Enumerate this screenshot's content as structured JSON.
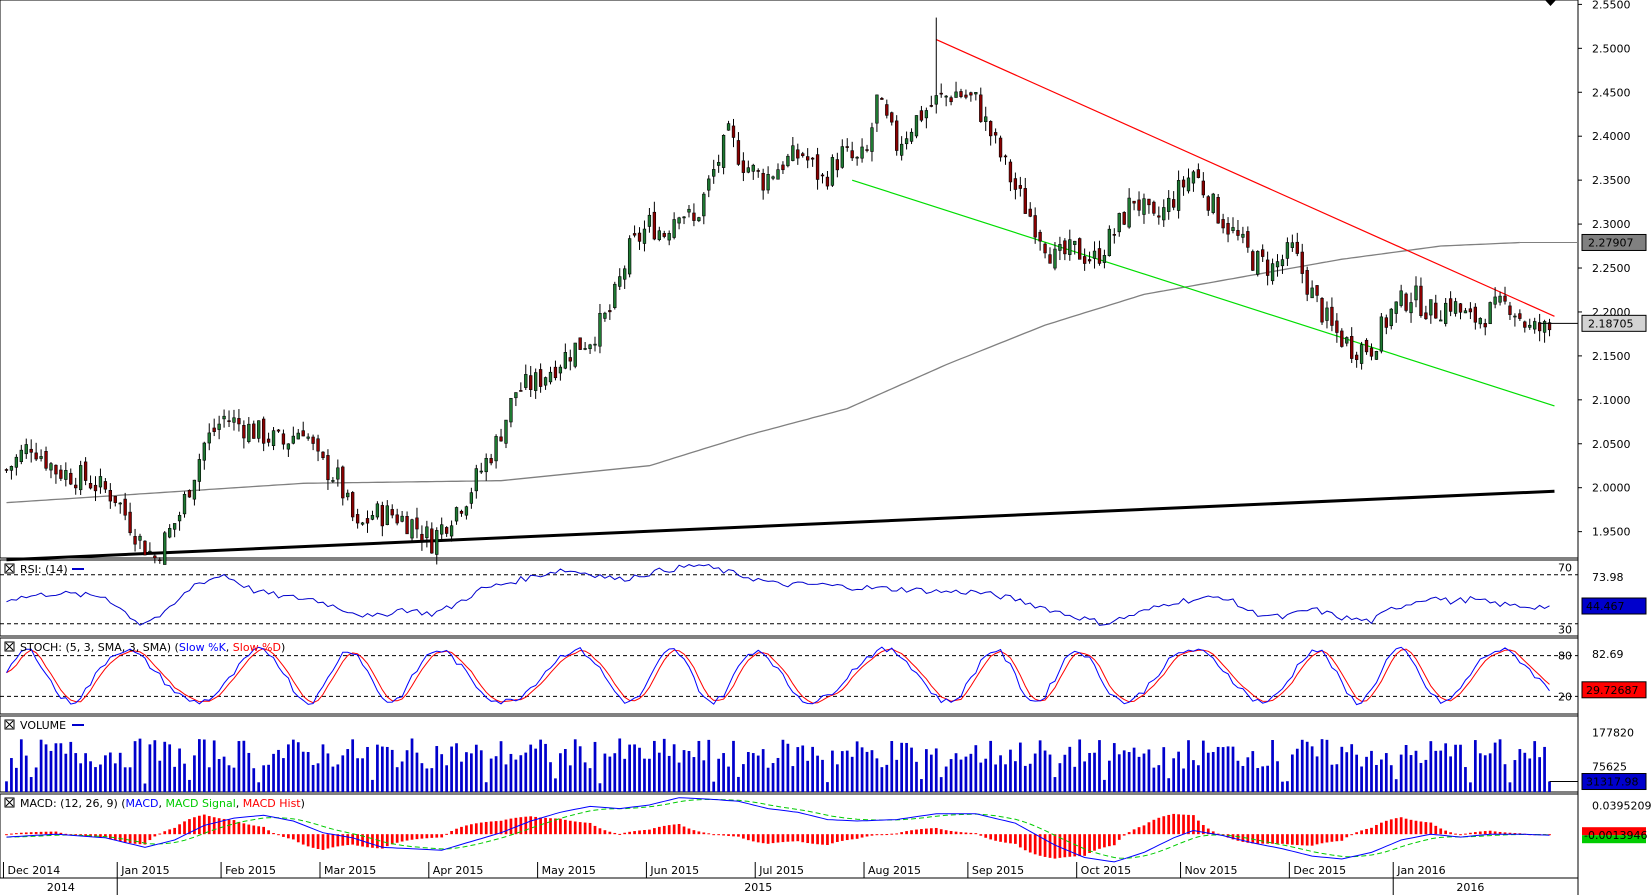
{
  "chart_data": [
    {
      "type": "candlestick",
      "panel": "price",
      "title": "",
      "ylim": [
        1.92,
        2.555
      ],
      "y_ticks": [
        "2.5500",
        "2.5000",
        "2.4500",
        "2.4000",
        "2.3500",
        "2.3000",
        "2.2500",
        "2.2000",
        "2.1500",
        "2.1000",
        "2.0500",
        "2.0000",
        "1.9500"
      ],
      "last_price_label": "2.18705",
      "ma_label": "2.27907",
      "ma_value": 2.27907,
      "last_price": 2.18705,
      "anchors": [
        [
          0,
          2.02
        ],
        [
          5,
          2.05
        ],
        [
          10,
          2.02
        ],
        [
          16,
          2.01
        ],
        [
          22,
          1.99
        ],
        [
          27,
          1.94
        ],
        [
          30,
          1.92
        ],
        [
          35,
          1.97
        ],
        [
          40,
          2.05
        ],
        [
          44,
          2.08
        ],
        [
          48,
          2.07
        ],
        [
          52,
          2.06
        ],
        [
          56,
          2.05
        ],
        [
          60,
          2.07
        ],
        [
          63,
          2.03
        ],
        [
          67,
          2.01
        ],
        [
          71,
          1.95
        ],
        [
          74,
          1.97
        ],
        [
          78,
          1.97
        ],
        [
          82,
          1.96
        ],
        [
          86,
          1.94
        ],
        [
          90,
          1.97
        ],
        [
          93,
          1.99
        ],
        [
          96,
          2.02
        ],
        [
          99,
          2.05
        ],
        [
          103,
          2.11
        ],
        [
          107,
          2.12
        ],
        [
          111,
          2.14
        ],
        [
          115,
          2.16
        ],
        [
          118,
          2.17
        ],
        [
          122,
          2.2
        ],
        [
          126,
          2.27
        ],
        [
          130,
          2.3
        ],
        [
          133,
          2.29
        ],
        [
          136,
          2.32
        ],
        [
          139,
          2.3
        ],
        [
          143,
          2.36
        ],
        [
          146,
          2.4
        ],
        [
          149,
          2.37
        ],
        [
          153,
          2.35
        ],
        [
          157,
          2.37
        ],
        [
          161,
          2.38
        ],
        [
          165,
          2.35
        ],
        [
          169,
          2.38
        ],
        [
          172,
          2.37
        ],
        [
          174,
          2.38
        ],
        [
          176,
          2.44
        ],
        [
          180,
          2.39
        ],
        [
          184,
          2.42
        ],
        [
          188,
          2.44
        ],
        [
          192,
          2.45
        ],
        [
          196,
          2.44
        ],
        [
          200,
          2.39
        ],
        [
          204,
          2.34
        ],
        [
          208,
          2.3
        ],
        [
          212,
          2.26
        ],
        [
          216,
          2.27
        ],
        [
          220,
          2.26
        ],
        [
          224,
          2.29
        ],
        [
          228,
          2.33
        ],
        [
          232,
          2.3
        ],
        [
          236,
          2.33
        ],
        [
          240,
          2.36
        ],
        [
          244,
          2.32
        ],
        [
          248,
          2.29
        ],
        [
          252,
          2.26
        ],
        [
          256,
          2.25
        ],
        [
          260,
          2.27
        ],
        [
          264,
          2.22
        ],
        [
          268,
          2.18
        ],
        [
          272,
          2.16
        ],
        [
          276,
          2.16
        ],
        [
          280,
          2.2
        ],
        [
          284,
          2.22
        ],
        [
          288,
          2.2
        ],
        [
          292,
          2.21
        ],
        [
          296,
          2.19
        ],
        [
          300,
          2.2
        ],
        [
          304,
          2.21
        ],
        [
          308,
          2.18
        ],
        [
          312,
          2.18
        ]
      ],
      "ma_anchors": [
        [
          0,
          1.983
        ],
        [
          60,
          2.005
        ],
        [
          100,
          2.008
        ],
        [
          130,
          2.025
        ],
        [
          150,
          2.06
        ],
        [
          170,
          2.09
        ],
        [
          190,
          2.14
        ],
        [
          210,
          2.185
        ],
        [
          230,
          2.22
        ],
        [
          250,
          2.24
        ],
        [
          270,
          2.26
        ],
        [
          290,
          2.275
        ],
        [
          306,
          2.279
        ]
      ],
      "trendlines": [
        {
          "color": "#ff0000",
          "from": [
            188,
            2.51
          ],
          "to": [
            313,
            2.195
          ]
        },
        {
          "color": "#00dd00",
          "from": [
            171,
            2.35
          ],
          "to": [
            313,
            2.093
          ]
        },
        {
          "color": "#000000",
          "from": [
            0,
            1.918
          ],
          "to": [
            313,
            1.996
          ]
        }
      ]
    },
    {
      "panel": "rsi",
      "label": "RSI: (14)",
      "ylim": [
        20,
        82
      ],
      "levels": [
        70,
        30
      ],
      "level_labels": [
        "70",
        "30"
      ],
      "scale_label": "73.98",
      "current_label": "44.467",
      "anchors": [
        [
          0,
          50
        ],
        [
          10,
          55
        ],
        [
          20,
          52
        ],
        [
          27,
          30
        ],
        [
          32,
          38
        ],
        [
          38,
          62
        ],
        [
          44,
          70
        ],
        [
          50,
          57
        ],
        [
          56,
          52
        ],
        [
          62,
          50
        ],
        [
          68,
          42
        ],
        [
          74,
          35
        ],
        [
          80,
          42
        ],
        [
          86,
          38
        ],
        [
          90,
          44
        ],
        [
          96,
          58
        ],
        [
          104,
          66
        ],
        [
          112,
          74
        ],
        [
          118,
          71
        ],
        [
          124,
          66
        ],
        [
          132,
          73
        ],
        [
          140,
          78
        ],
        [
          146,
          72
        ],
        [
          150,
          68
        ],
        [
          156,
          62
        ],
        [
          164,
          62
        ],
        [
          170,
          60
        ],
        [
          176,
          59
        ],
        [
          182,
          58
        ],
        [
          190,
          56
        ],
        [
          196,
          56
        ],
        [
          204,
          50
        ],
        [
          214,
          38
        ],
        [
          222,
          30
        ],
        [
          230,
          40
        ],
        [
          236,
          48
        ],
        [
          246,
          52
        ],
        [
          252,
          39
        ],
        [
          258,
          35
        ],
        [
          264,
          42
        ],
        [
          270,
          35
        ],
        [
          276,
          32
        ],
        [
          280,
          42
        ],
        [
          288,
          52
        ],
        [
          292,
          48
        ],
        [
          296,
          50
        ],
        [
          300,
          47
        ],
        [
          304,
          45
        ],
        [
          308,
          44
        ],
        [
          312,
          44
        ]
      ]
    },
    {
      "panel": "stoch",
      "label": "STOCH: (5, 3, SMA, 3, SMA)",
      "series_k": "Slow %K",
      "series_d": "Slow %D",
      "ylim": [
        0,
        100
      ],
      "levels": [
        80,
        20
      ],
      "level_labels": [
        "80",
        "20"
      ],
      "scale_label": "82.69",
      "current_label": "29.72687"
    },
    {
      "panel": "volume",
      "label": "VOLUME",
      "ylim": [
        0,
        215000
      ],
      "scale_labels": [
        "177820",
        "75625"
      ],
      "scale_values": [
        177820,
        75625
      ],
      "current_label": "31317.98"
    },
    {
      "panel": "macd",
      "label": "MACD: (12, 26, 9)",
      "series": [
        "MACD",
        "MACD Signal",
        "MACD Hist"
      ],
      "ylim": [
        -0.06,
        0.055
      ],
      "scale_label": "0.0395209",
      "current_label": "-0.0013946",
      "anchors": [
        [
          0,
          -0.004
        ],
        [
          10,
          0.0
        ],
        [
          20,
          -0.005
        ],
        [
          28,
          -0.018
        ],
        [
          34,
          -0.008
        ],
        [
          40,
          0.012
        ],
        [
          46,
          0.022
        ],
        [
          52,
          0.026
        ],
        [
          58,
          0.018
        ],
        [
          64,
          0.002
        ],
        [
          70,
          -0.005
        ],
        [
          76,
          -0.018
        ],
        [
          82,
          -0.02
        ],
        [
          88,
          -0.022
        ],
        [
          94,
          -0.01
        ],
        [
          100,
          0.002
        ],
        [
          106,
          0.018
        ],
        [
          112,
          0.03
        ],
        [
          118,
          0.038
        ],
        [
          124,
          0.035
        ],
        [
          130,
          0.04
        ],
        [
          136,
          0.05
        ],
        [
          142,
          0.048
        ],
        [
          148,
          0.045
        ],
        [
          154,
          0.035
        ],
        [
          160,
          0.03
        ],
        [
          166,
          0.02
        ],
        [
          172,
          0.018
        ],
        [
          180,
          0.02
        ],
        [
          188,
          0.028
        ],
        [
          196,
          0.028
        ],
        [
          204,
          0.015
        ],
        [
          212,
          -0.015
        ],
        [
          218,
          -0.032
        ],
        [
          224,
          -0.038
        ],
        [
          230,
          -0.025
        ],
        [
          236,
          -0.005
        ],
        [
          240,
          0.005
        ],
        [
          246,
          -0.002
        ],
        [
          252,
          -0.012
        ],
        [
          258,
          -0.02
        ],
        [
          264,
          -0.03
        ],
        [
          270,
          -0.034
        ],
        [
          276,
          -0.025
        ],
        [
          282,
          -0.008
        ],
        [
          288,
          0.0
        ],
        [
          294,
          -0.004
        ],
        [
          300,
          0.0
        ],
        [
          306,
          0.0
        ],
        [
          312,
          -0.0014
        ]
      ]
    }
  ],
  "x_axis": {
    "months": [
      "Dec 2014",
      "Jan 2015",
      "Feb 2015",
      "Mar 2015",
      "Apr 2015",
      "May 2015",
      "Jun 2015",
      "Jul 2015",
      "Aug 2015",
      "Sep 2015",
      "Oct 2015",
      "Nov 2015",
      "Dec 2015",
      "Jan 2016"
    ],
    "month_start_index": [
      0,
      23,
      44,
      64,
      86,
      108,
      130,
      152,
      174,
      195,
      217,
      238,
      260,
      281
    ],
    "years": [
      "2014",
      "2015",
      "2016"
    ],
    "year_center_index": [
      11,
      152,
      296
    ],
    "n_bars": 313
  },
  "colors": {
    "candle_up": "#1e7a32",
    "candle_down": "#8b0000",
    "candle_outline": "#000000",
    "ma": "#808080",
    "rsi": "#0000cc",
    "stoch_k": "#0000ff",
    "stoch_d": "#ff0000",
    "volume": "#0000cc",
    "macd": "#0000ff",
    "macd_signal": "#00cc00",
    "macd_hist": "#ff0000"
  }
}
